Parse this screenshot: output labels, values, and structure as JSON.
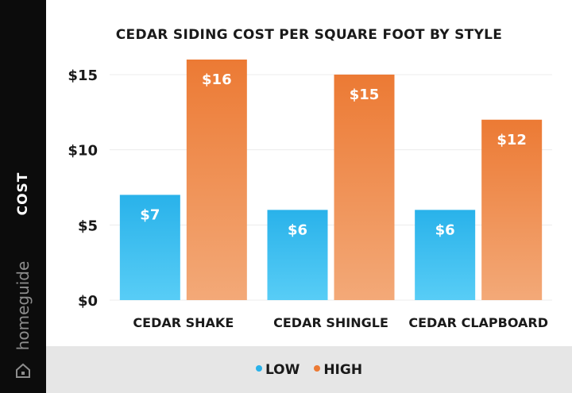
{
  "sidebar": {
    "ylabel": "COST",
    "brand": "homeguide",
    "brand_icon": "house-icon"
  },
  "colors": {
    "low_top": "#29b2ea",
    "low_bottom": "#58cdf6",
    "high_top": "#ec7a34",
    "high_bottom": "#f3a978",
    "legend_bg": "#e6e6e6",
    "sidebar_bg": "#0c0c0c"
  },
  "chart_data": {
    "type": "bar",
    "title": "CEDAR SIDING COST PER SQUARE FOOT BY STYLE",
    "ylabel": "COST",
    "xlabel": "",
    "categories": [
      "CEDAR SHAKE",
      "CEDAR SHINGLE",
      "CEDAR CLAPBOARD"
    ],
    "series": [
      {
        "name": "LOW",
        "values": [
          7,
          6,
          6
        ],
        "labels": [
          "$7",
          "$6",
          "$6"
        ]
      },
      {
        "name": "HIGH",
        "values": [
          16,
          15,
          12
        ],
        "labels": [
          "$16",
          "$15",
          "$12"
        ]
      }
    ],
    "ylim": [
      0,
      16
    ],
    "yticks": [
      0,
      5,
      10,
      15
    ],
    "ytick_labels": [
      "$0",
      "$5",
      "$10",
      "$15"
    ],
    "grid": true,
    "legend_position": "bottom"
  }
}
